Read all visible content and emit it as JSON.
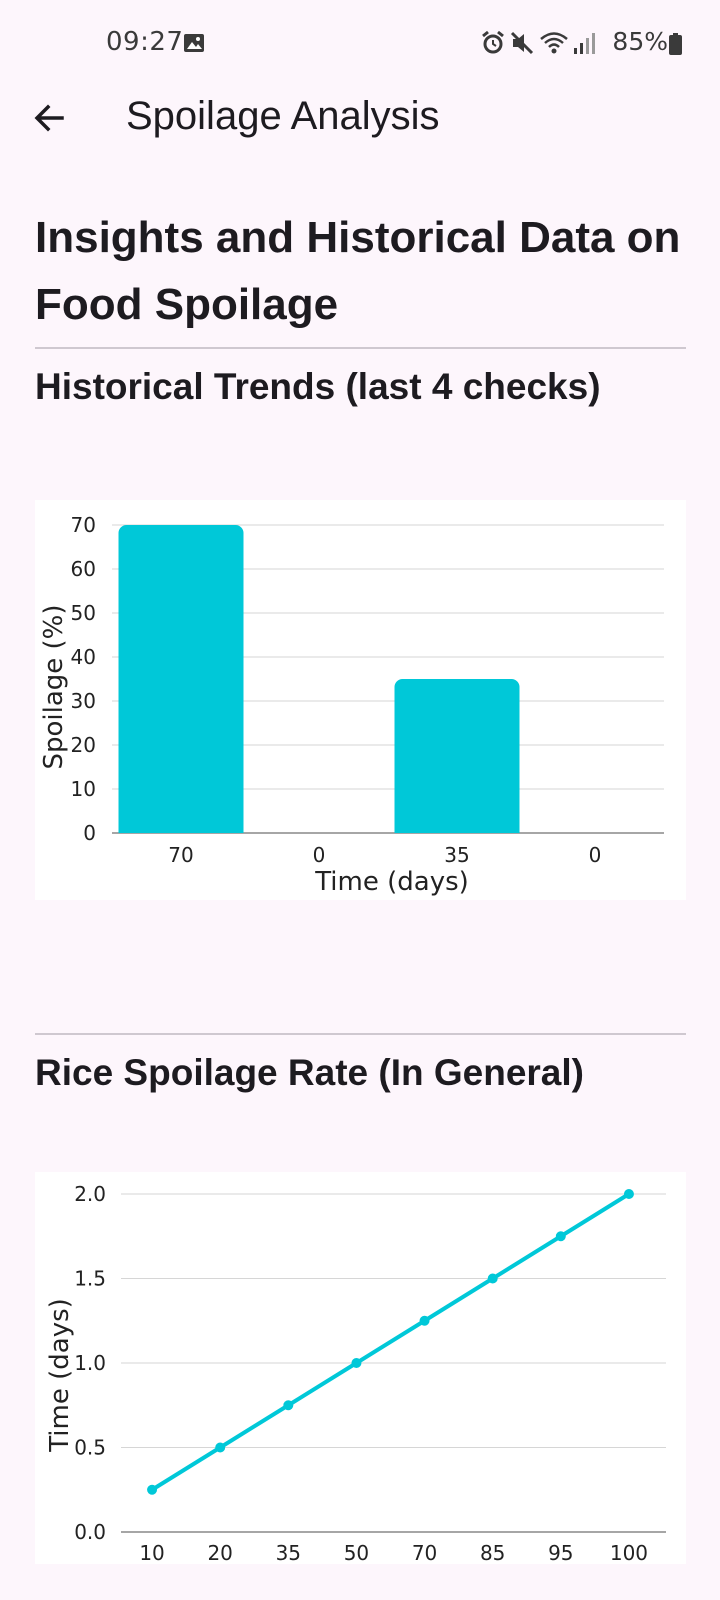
{
  "status_bar": {
    "time": "09:27",
    "battery": "85%",
    "icons": [
      "image-icon",
      "alarm-icon",
      "mute-icon",
      "wifi-icon",
      "signal-icon",
      "battery-icon"
    ]
  },
  "app_bar": {
    "title": "Spoilage Analysis",
    "back_icon": "arrow-back-icon"
  },
  "page": {
    "heading": "Insights and Historical Data on Food Spoilage"
  },
  "sections": [
    {
      "title": "Historical Trends (last 4 checks)"
    },
    {
      "title": "Rice Spoilage Rate (In General)"
    }
  ],
  "colors": {
    "accent": "#00c8d8",
    "background": "#fdf6fc"
  },
  "chart_data": [
    {
      "type": "bar",
      "categories": [
        "70",
        "0",
        "35",
        "0"
      ],
      "values": [
        70,
        0,
        35,
        0
      ],
      "xlabel": "Time (days)",
      "ylabel": "Spoilage (%)",
      "ylim": [
        0,
        70
      ],
      "yticks": [
        "0",
        "10",
        "20",
        "30",
        "40",
        "50",
        "60",
        "70"
      ],
      "grid": true
    },
    {
      "type": "line",
      "categories": [
        "10",
        "20",
        "35",
        "50",
        "70",
        "85",
        "95",
        "100"
      ],
      "values": [
        0.25,
        0.5,
        0.75,
        1.0,
        1.25,
        1.5,
        1.75,
        2.0
      ],
      "ylabel": "Time (days)",
      "ylim": [
        0,
        2
      ],
      "yticks": [
        "0.0",
        "0.5",
        "1.0",
        "1.5",
        "2.0"
      ],
      "grid": true
    }
  ]
}
